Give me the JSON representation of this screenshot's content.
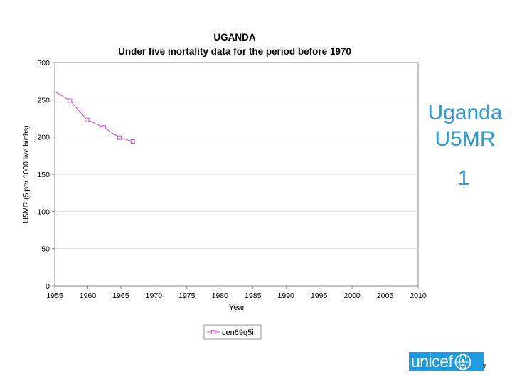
{
  "colors": {
    "series": "#d64fd6",
    "accent_text": "#2e9bd6",
    "logo_bg": "#1e9ae0"
  },
  "side_panel": {
    "title_line1": "Uganda",
    "title_line2": "U5MR",
    "slide_number": "1"
  },
  "logo": {
    "text": "unicef",
    "emblem": "unicef-emblem-icon"
  },
  "page_number": "7",
  "chart_data": {
    "type": "line",
    "title": "UGANDA",
    "subtitle": "Under five mortality data for the period before 1970",
    "xlabel": "Year",
    "ylabel": "U5MR (5 per 1000 live births)",
    "xlim": [
      1955,
      2010
    ],
    "ylim": [
      0,
      300
    ],
    "xticks": [
      "1955",
      "1960",
      "1965",
      "1970",
      "1975",
      "1980",
      "1985",
      "1990",
      "1995",
      "2000",
      "2005",
      "2010"
    ],
    "yticks": [
      "0",
      "50",
      "100",
      "150",
      "200",
      "250",
      "300"
    ],
    "grid": true,
    "legend": "bottom",
    "series": [
      {
        "name": "cen69q5i",
        "x": [
          1955.0,
          1957.3,
          1959.9,
          1962.4,
          1964.8,
          1966.8
        ],
        "y": [
          261,
          249,
          223,
          213,
          199,
          194
        ]
      }
    ]
  }
}
